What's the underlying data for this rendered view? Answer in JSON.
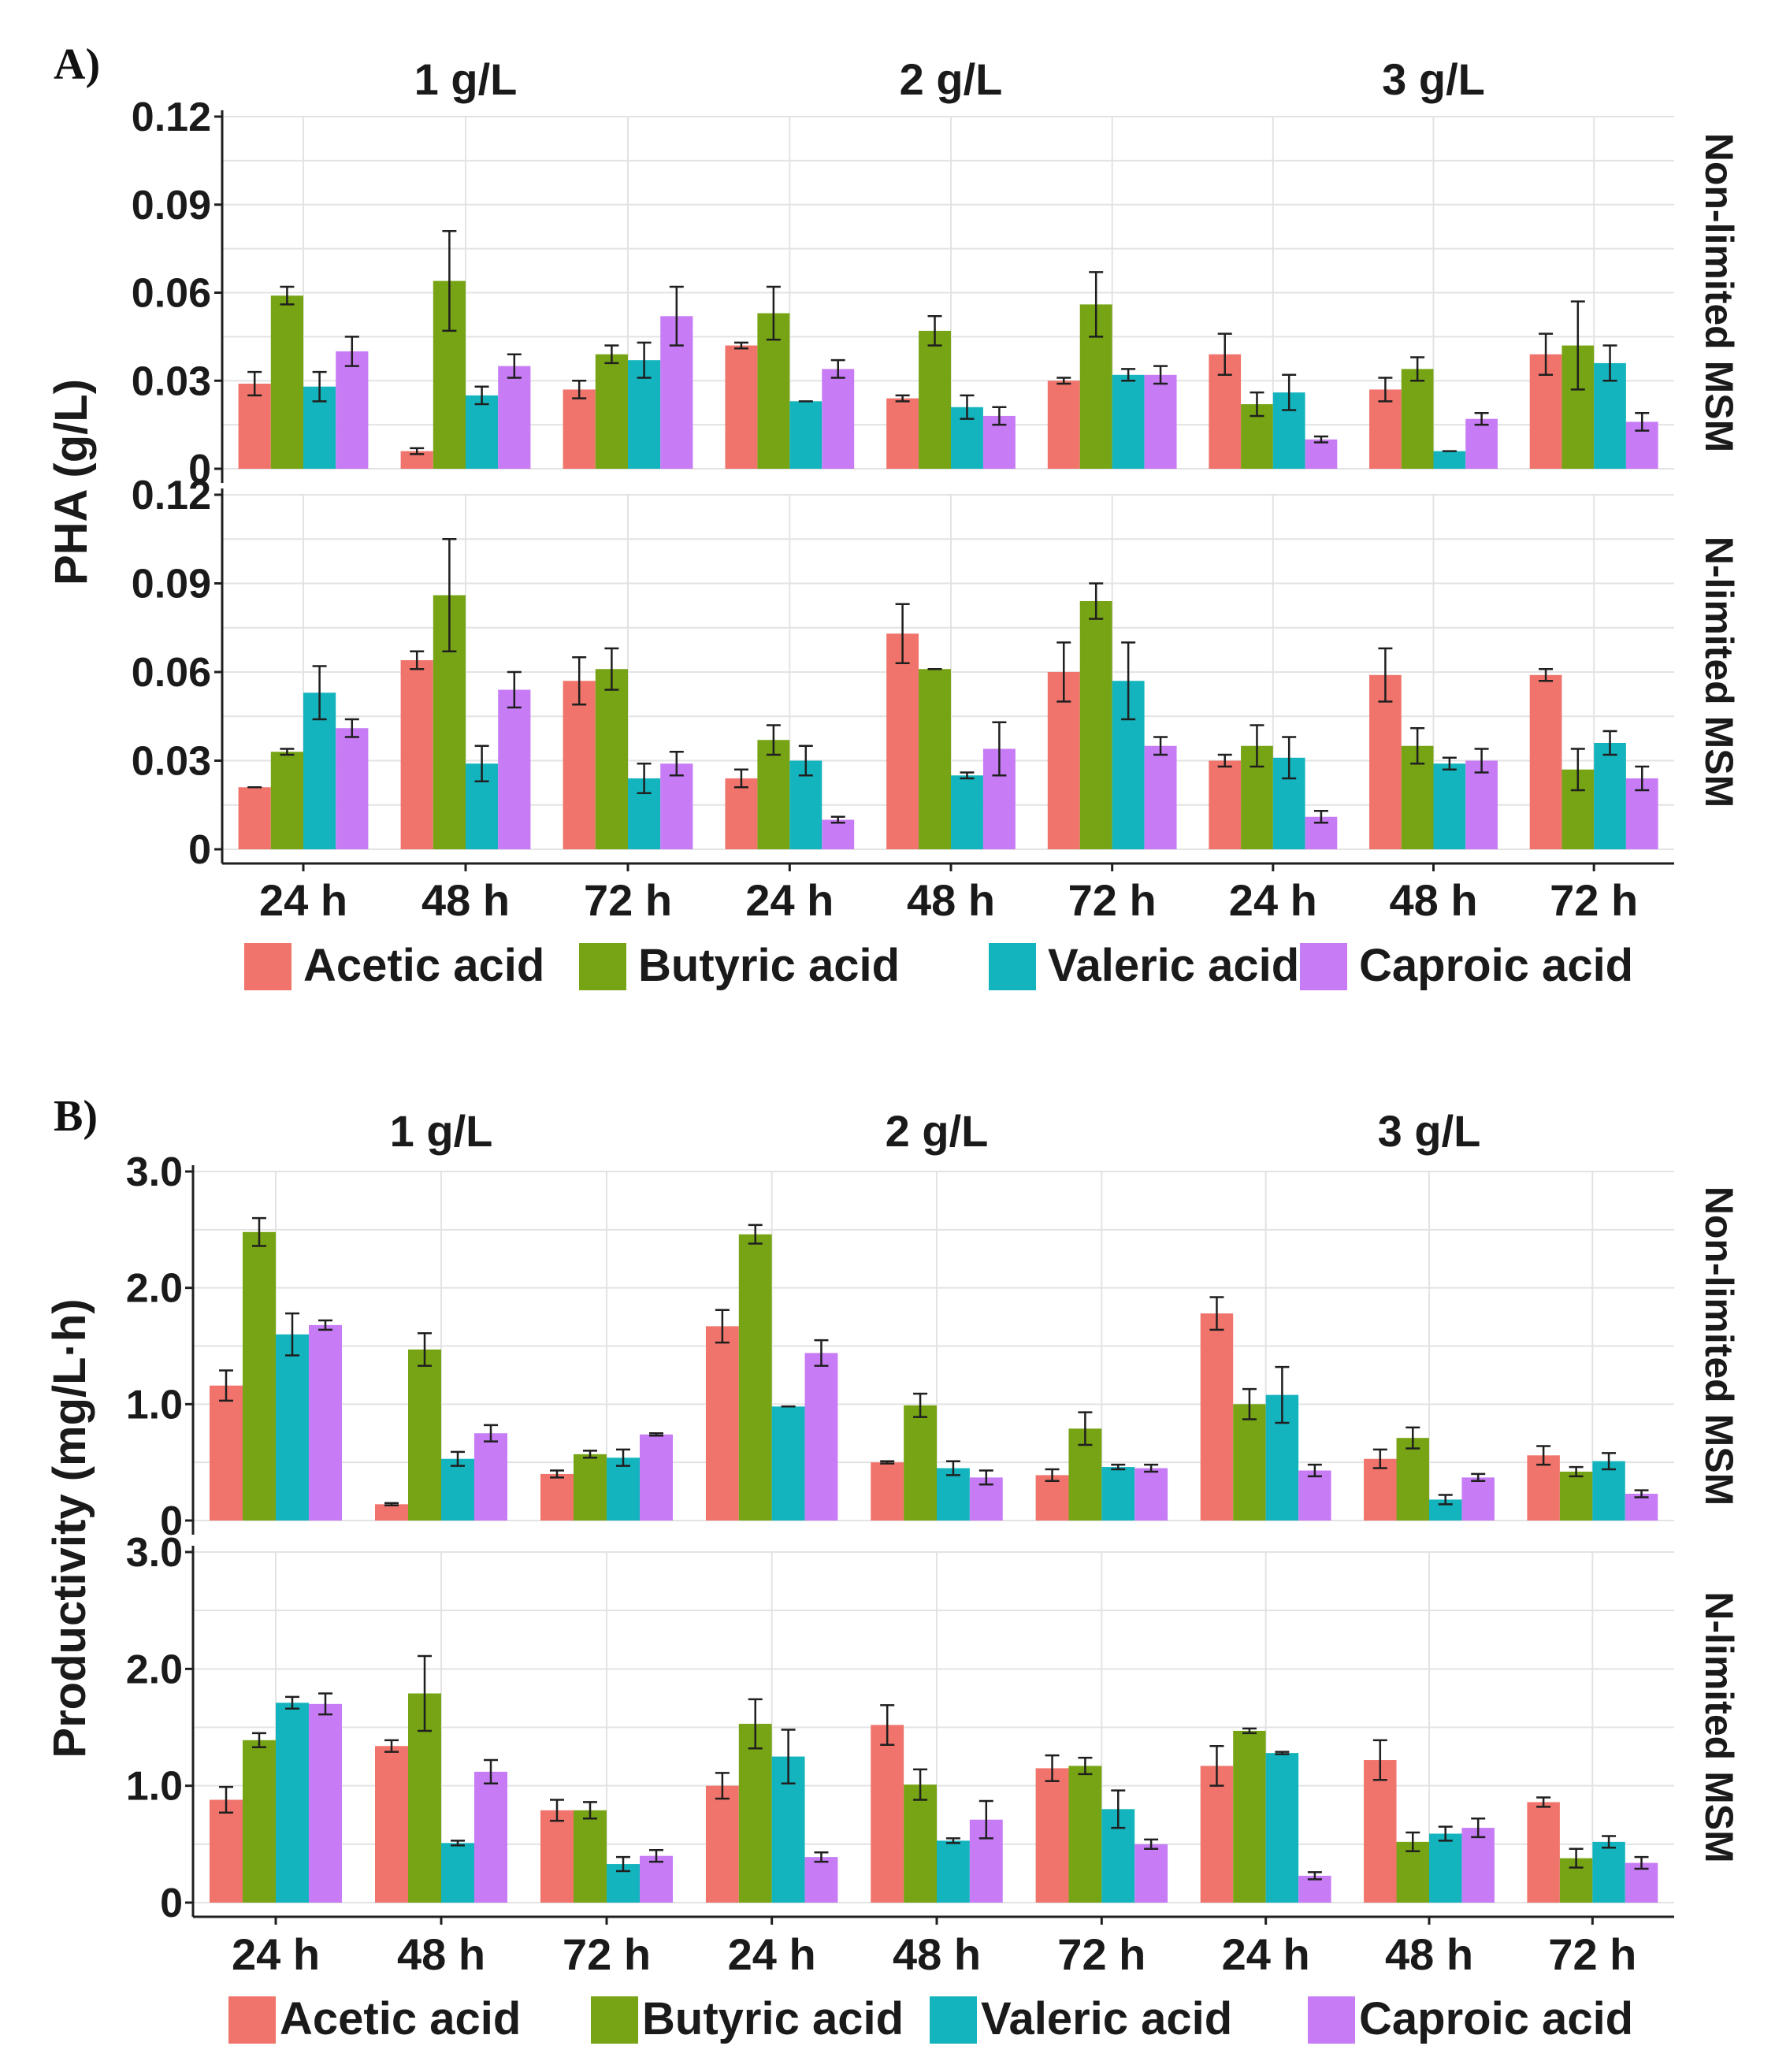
{
  "colors": {
    "Acetic acid": "#f0746b",
    "Butyric acid": "#76a414",
    "Valeric acid": "#14b4be",
    "Caproic acid": "#c77cf5"
  },
  "chart_data": [
    {
      "panel_label": "A)",
      "type": "bar",
      "ylabel": "PHA (g/L)",
      "y_ticks": [
        "0",
        "0.03",
        "0.06",
        "0.09",
        "0.12"
      ],
      "ylim": [
        0,
        0.12
      ],
      "columns": [
        "1 g/L",
        "2 g/L",
        "3 g/L"
      ],
      "rows": [
        "Non-limited MSM",
        "N-limited MSM"
      ],
      "categories": [
        "24 h",
        "48 h",
        "72 h"
      ],
      "legend": [
        "Acetic acid",
        "Butyric acid",
        "Valeric acid",
        "Caproic acid"
      ],
      "facets": {
        "Non-limited MSM": {
          "1 g/L": {
            "values": [
              [
                0.029,
                0.059,
                0.028,
                0.04
              ],
              [
                0.006,
                0.064,
                0.025,
                0.035
              ],
              [
                0.027,
                0.039,
                0.037,
                0.052
              ]
            ],
            "errors": [
              [
                0.004,
                0.003,
                0.005,
                0.005
              ],
              [
                0.001,
                0.017,
                0.003,
                0.004
              ],
              [
                0.003,
                0.003,
                0.006,
                0.01
              ]
            ]
          },
          "2 g/L": {
            "values": [
              [
                0.042,
                0.053,
                0.023,
                0.034
              ],
              [
                0.024,
                0.047,
                0.021,
                0.018
              ],
              [
                0.03,
                0.056,
                0.032,
                0.032
              ]
            ],
            "errors": [
              [
                0.001,
                0.009,
                0.0,
                0.003
              ],
              [
                0.001,
                0.005,
                0.004,
                0.003
              ],
              [
                0.001,
                0.011,
                0.002,
                0.003
              ]
            ]
          },
          "3 g/L": {
            "values": [
              [
                0.039,
                0.022,
                0.026,
                0.01
              ],
              [
                0.027,
                0.034,
                0.006,
                0.017
              ],
              [
                0.039,
                0.042,
                0.036,
                0.016
              ]
            ],
            "errors": [
              [
                0.007,
                0.004,
                0.006,
                0.001
              ],
              [
                0.004,
                0.004,
                0.0,
                0.002
              ],
              [
                0.007,
                0.015,
                0.006,
                0.003
              ]
            ]
          }
        },
        "N-limited MSM": {
          "1 g/L": {
            "values": [
              [
                0.021,
                0.033,
                0.053,
                0.041
              ],
              [
                0.064,
                0.086,
                0.029,
                0.054
              ],
              [
                0.057,
                0.061,
                0.024,
                0.029
              ]
            ],
            "errors": [
              [
                0.0,
                0.001,
                0.009,
                0.003
              ],
              [
                0.003,
                0.019,
                0.006,
                0.006
              ],
              [
                0.008,
                0.007,
                0.005,
                0.004
              ]
            ]
          },
          "2 g/L": {
            "values": [
              [
                0.024,
                0.037,
                0.03,
                0.01
              ],
              [
                0.073,
                0.061,
                0.025,
                0.034
              ],
              [
                0.06,
                0.084,
                0.057,
                0.035
              ]
            ],
            "errors": [
              [
                0.003,
                0.005,
                0.005,
                0.001
              ],
              [
                0.01,
                0.0,
                0.001,
                0.009
              ],
              [
                0.01,
                0.006,
                0.013,
                0.003
              ]
            ]
          },
          "3 g/L": {
            "values": [
              [
                0.03,
                0.035,
                0.031,
                0.011
              ],
              [
                0.059,
                0.035,
                0.029,
                0.03
              ],
              [
                0.059,
                0.027,
                0.036,
                0.024
              ]
            ],
            "errors": [
              [
                0.002,
                0.007,
                0.007,
                0.002
              ],
              [
                0.009,
                0.006,
                0.002,
                0.004
              ],
              [
                0.002,
                0.007,
                0.004,
                0.004
              ]
            ]
          }
        }
      }
    },
    {
      "panel_label": "B)",
      "type": "bar",
      "ylabel": "Productivity (mg/L·h)",
      "y_ticks": [
        "0",
        "1.0",
        "2.0",
        "3.0"
      ],
      "ylim": [
        0,
        3.0
      ],
      "columns": [
        "1 g/L",
        "2 g/L",
        "3 g/L"
      ],
      "rows": [
        "Non-limited MSM",
        "N-limited MSM"
      ],
      "categories": [
        "24 h",
        "48 h",
        "72 h"
      ],
      "legend": [
        "Acetic acid",
        "Butyric acid",
        "Valeric acid",
        "Caproic acid"
      ],
      "facets": {
        "Non-limited MSM": {
          "1 g/L": {
            "values": [
              [
                1.16,
                2.48,
                1.6,
                1.68
              ],
              [
                0.14,
                1.47,
                0.53,
                0.75
              ],
              [
                0.4,
                0.57,
                0.54,
                0.74
              ]
            ],
            "errors": [
              [
                0.13,
                0.12,
                0.18,
                0.04
              ],
              [
                0.01,
                0.14,
                0.06,
                0.07
              ],
              [
                0.03,
                0.03,
                0.07,
                0.01
              ]
            ]
          },
          "2 g/L": {
            "values": [
              [
                1.67,
                2.46,
                0.98,
                1.44
              ],
              [
                0.5,
                0.99,
                0.45,
                0.37
              ],
              [
                0.39,
                0.79,
                0.46,
                0.45
              ]
            ],
            "errors": [
              [
                0.14,
                0.08,
                0.0,
                0.11
              ],
              [
                0.01,
                0.1,
                0.06,
                0.06
              ],
              [
                0.05,
                0.14,
                0.02,
                0.03
              ]
            ]
          },
          "3 g/L": {
            "values": [
              [
                1.78,
                1.0,
                1.08,
                0.43
              ],
              [
                0.53,
                0.71,
                0.18,
                0.37
              ],
              [
                0.56,
                0.42,
                0.51,
                0.23
              ]
            ],
            "errors": [
              [
                0.14,
                0.13,
                0.24,
                0.05
              ],
              [
                0.08,
                0.09,
                0.04,
                0.03
              ],
              [
                0.08,
                0.04,
                0.07,
                0.03
              ]
            ]
          }
        },
        "N-limited MSM": {
          "1 g/L": {
            "values": [
              [
                0.88,
                1.39,
                1.71,
                1.7
              ],
              [
                1.34,
                1.79,
                0.51,
                1.12
              ],
              [
                0.79,
                0.79,
                0.33,
                0.4
              ]
            ],
            "errors": [
              [
                0.11,
                0.06,
                0.05,
                0.09
              ],
              [
                0.05,
                0.32,
                0.02,
                0.1
              ],
              [
                0.09,
                0.07,
                0.06,
                0.05
              ]
            ]
          },
          "2 g/L": {
            "values": [
              [
                1.0,
                1.53,
                1.25,
                0.39
              ],
              [
                1.52,
                1.01,
                0.53,
                0.71
              ],
              [
                1.15,
                1.17,
                0.8,
                0.5
              ]
            ],
            "errors": [
              [
                0.11,
                0.21,
                0.23,
                0.04
              ],
              [
                0.17,
                0.13,
                0.02,
                0.16
              ],
              [
                0.11,
                0.07,
                0.16,
                0.04
              ]
            ]
          },
          "3 g/L": {
            "values": [
              [
                1.17,
                1.47,
                1.28,
                0.23
              ],
              [
                1.22,
                0.52,
                0.59,
                0.64
              ],
              [
                0.86,
                0.38,
                0.52,
                0.34
              ]
            ],
            "errors": [
              [
                0.17,
                0.02,
                0.01,
                0.03
              ],
              [
                0.17,
                0.08,
                0.06,
                0.08
              ],
              [
                0.04,
                0.08,
                0.05,
                0.05
              ]
            ]
          }
        }
      }
    }
  ]
}
